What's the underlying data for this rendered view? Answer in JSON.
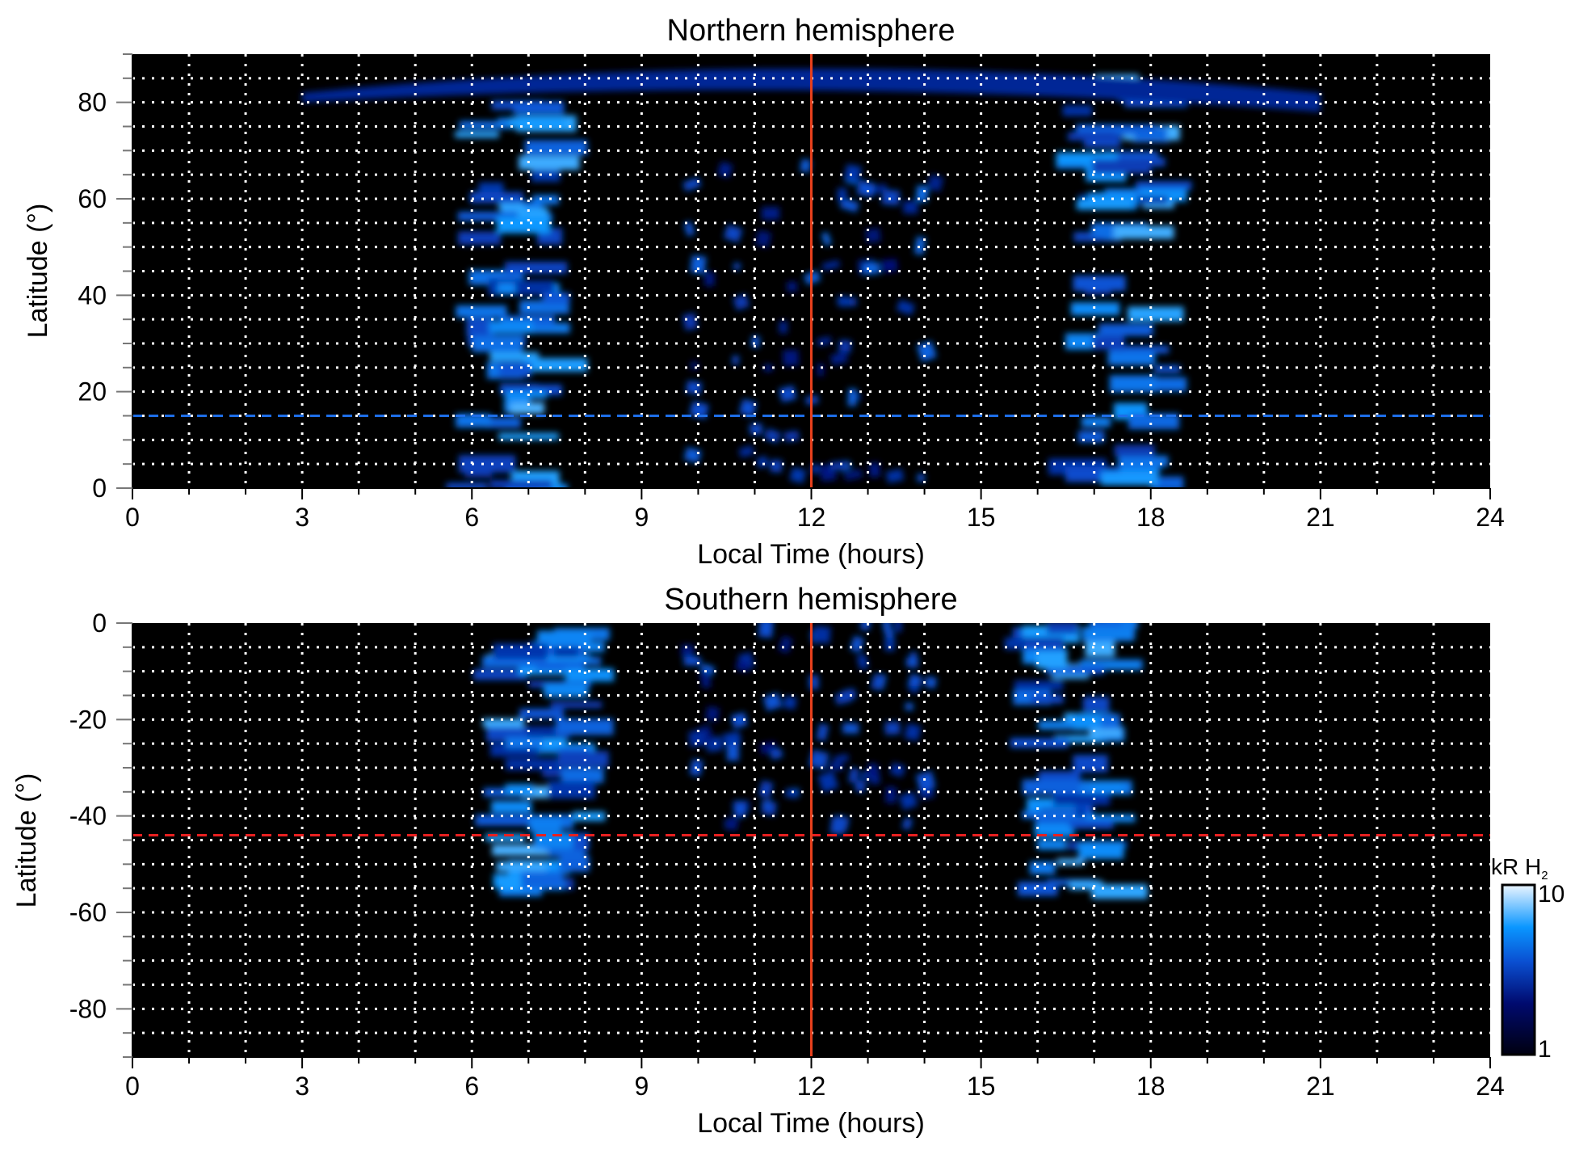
{
  "chart_data": [
    {
      "type": "heatmap",
      "title": "Northern hemisphere",
      "xlabel": "Local Time (hours)",
      "ylabel": "Latitude (°)",
      "xlim": [
        0,
        24
      ],
      "ylim": [
        0,
        90
      ],
      "xticks": [
        "0",
        "3",
        "6",
        "9",
        "12",
        "15",
        "18",
        "21",
        "24"
      ],
      "yticks": [
        {
          "v": 0,
          "label": "0"
        },
        {
          "v": 20,
          "label": "20"
        },
        {
          "v": 40,
          "label": "40"
        },
        {
          "v": 60,
          "label": "60"
        },
        {
          "v": 80,
          "label": "80"
        }
      ],
      "grid": true,
      "grid_step": {
        "x": 1,
        "y": 5
      },
      "vline": {
        "x": 12,
        "color": "#e8401c"
      },
      "hline": {
        "y": 15,
        "color": "#1e6ee8",
        "style": "dashed"
      },
      "bands": [
        {
          "lt_center": 6.7,
          "lat_range": [
            0,
            82
          ],
          "intensity": 0.75
        },
        {
          "lt_center": 17.5,
          "lat_range": [
            0,
            85
          ],
          "intensity": 0.75
        },
        {
          "lt_center": 12,
          "lat_range": [
            0,
            68
          ],
          "intensity": 0.55,
          "patchy": true
        }
      ]
    },
    {
      "type": "heatmap",
      "title": "Southern hemisphere",
      "xlabel": "Local Time (hours)",
      "ylabel": "Latitude (°)",
      "xlim": [
        0,
        24
      ],
      "ylim": [
        -90,
        0
      ],
      "xticks": [
        "0",
        "3",
        "6",
        "9",
        "12",
        "15",
        "18",
        "21",
        "24"
      ],
      "yticks": [
        {
          "v": 0,
          "label": "0"
        },
        {
          "v": -20,
          "label": "-20"
        },
        {
          "v": -40,
          "label": "-40"
        },
        {
          "v": -60,
          "label": "-60"
        },
        {
          "v": -80,
          "label": "-80"
        }
      ],
      "grid": true,
      "grid_step": {
        "x": 1,
        "y": 5
      },
      "vline": {
        "x": 12,
        "color": "#e8401c"
      },
      "hline": {
        "y": -44,
        "color": "#e82020",
        "style": "dashed"
      },
      "bands": [
        {
          "lt_center": 7.3,
          "lat_range": [
            -56,
            0
          ],
          "intensity": 0.75
        },
        {
          "lt_center": 16.7,
          "lat_range": [
            -56,
            0
          ],
          "intensity": 0.75
        },
        {
          "lt_center": 12,
          "lat_range": [
            -42,
            0
          ],
          "intensity": 0.5,
          "patchy": true
        }
      ]
    }
  ],
  "colorbar": {
    "label": "kR H",
    "label_subscript": "2",
    "min_label": "1",
    "max_label": "10",
    "scale": "log",
    "range": [
      1,
      10
    ],
    "colors": [
      "#000010",
      "#000a6e",
      "#0a50d2",
      "#0a96ff",
      "#ebf5ff"
    ]
  }
}
